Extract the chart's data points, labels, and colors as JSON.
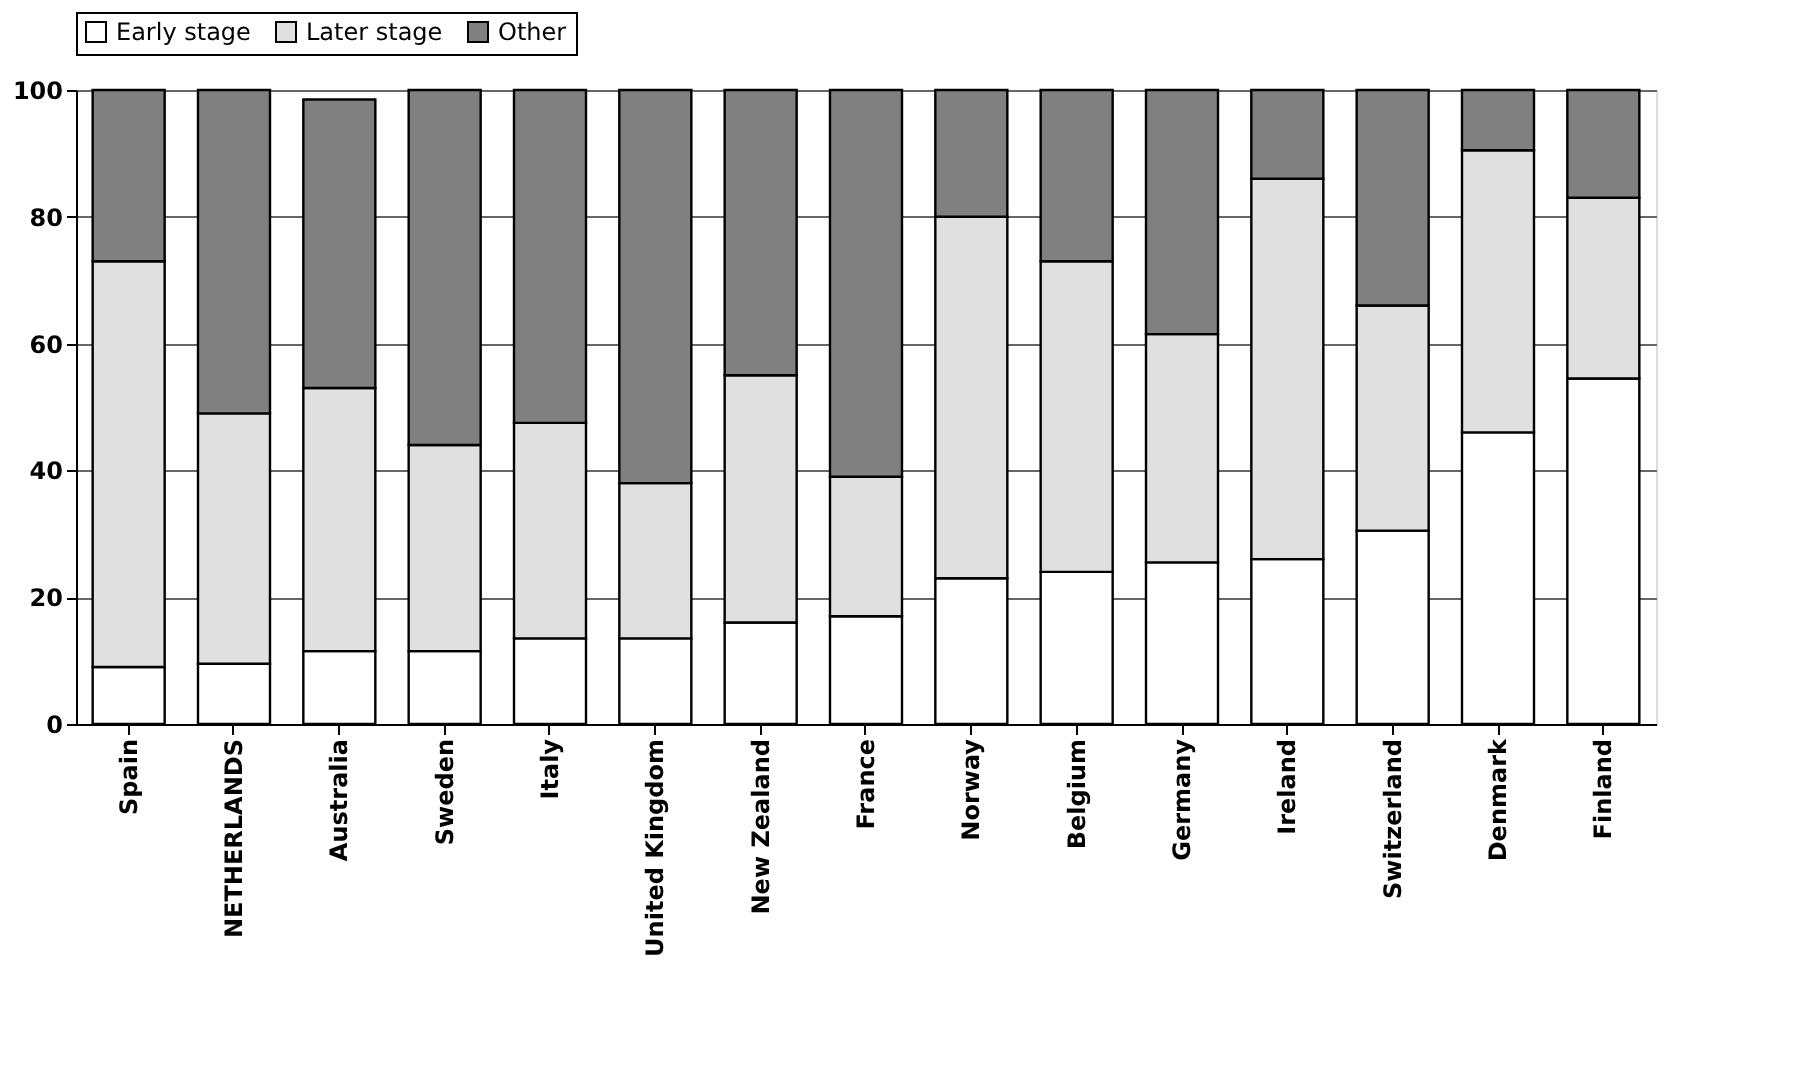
{
  "chart_data": {
    "type": "bar",
    "stacked": true,
    "categories": [
      "Spain",
      "NETHERLANDS",
      "Australia",
      "Sweden",
      "Italy",
      "United Kingdom",
      "New Zealand",
      "France",
      "Norway",
      "Belgium",
      "Germany",
      "Ireland",
      "Switzerland",
      "Denmark",
      "Finland"
    ],
    "series": [
      {
        "name": "Early stage",
        "color": "#ffffff",
        "values": [
          9,
          9.5,
          11.5,
          11.5,
          13.5,
          13.5,
          16,
          17,
          23,
          24,
          25.5,
          26,
          30.5,
          46,
          54.5
        ]
      },
      {
        "name": "Later stage",
        "color": "#e0e0e0",
        "values": [
          64,
          39.5,
          41.5,
          32.5,
          34,
          24.5,
          39,
          22,
          57,
          49,
          36,
          60,
          35.5,
          44.5,
          28.5
        ]
      },
      {
        "name": "Other",
        "color": "#808080",
        "values": [
          27,
          51,
          45.5,
          56,
          52.5,
          62,
          45,
          61,
          20,
          27,
          38.5,
          14,
          34,
          9.5,
          17
        ]
      }
    ],
    "ylim": [
      0,
      100
    ],
    "yticks": [
      0,
      20,
      40,
      60,
      80,
      100
    ],
    "grid": "y",
    "legend": "top"
  }
}
